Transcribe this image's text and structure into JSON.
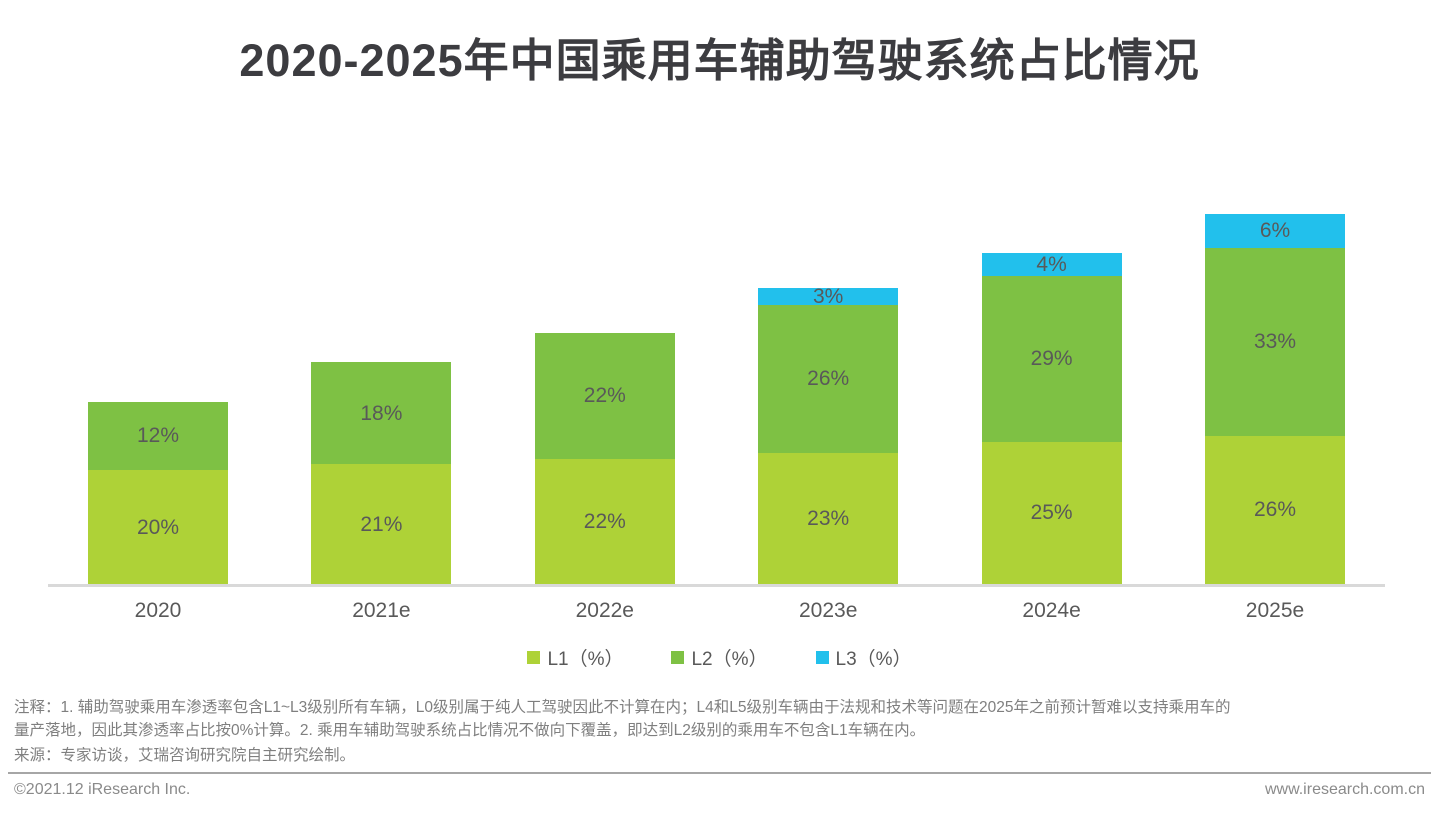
{
  "title": "2020-2025年中国乘用车辅助驾驶系统占比情况",
  "chart_data": {
    "type": "bar",
    "stacked": true,
    "title": "2020-2025年中国乘用车辅助驾驶系统占比情况",
    "categories": [
      "2020",
      "2021e",
      "2022e",
      "2023e",
      "2024e",
      "2025e"
    ],
    "series": [
      {
        "name": "L1（%）",
        "color": "#aed237",
        "values": [
          20,
          21,
          22,
          23,
          25,
          26
        ]
      },
      {
        "name": "L2（%）",
        "color": "#7ec144",
        "values": [
          12,
          18,
          22,
          26,
          29,
          33
        ]
      },
      {
        "name": "L3（%）",
        "color": "#22c0ec",
        "values": [
          0,
          0,
          0,
          3,
          4,
          6
        ]
      }
    ],
    "value_suffix": "%",
    "label_color": "#595959",
    "legend_position": "bottom",
    "grid": false,
    "ylim": [
      0,
      65
    ],
    "totals": [
      32,
      39,
      44,
      52,
      58,
      65
    ]
  },
  "notes": {
    "line1": "注释：1. 辅助驾驶乘用车渗透率包含L1~L3级别所有车辆，L0级别属于纯人工驾驶因此不计算在内；L4和L5级别车辆由于法规和技术等问题在2025年之前预计暂难以支持乘用车的",
    "line2": "量产落地，因此其渗透率占比按0%计算。2. 乘用车辅助驾驶系统占比情况不做向下覆盖，即达到L2级别的乘用车不包含L1车辆在内。",
    "source": "来源：专家访谈，艾瑞咨询研究院自主研究绘制。"
  },
  "footer": {
    "left": "©2021.12 iResearch Inc.",
    "right": "www.iresearch.com.cn"
  },
  "colors": {
    "l1": "#aed237",
    "l2": "#7ec144",
    "l3": "#22c0ec",
    "title_text": "#3c3c40",
    "bar_label_text": "#595959",
    "axis_line": "#d9d9d9",
    "note_text": "#7f7f7f",
    "footer_text": "#8a8a8a"
  }
}
